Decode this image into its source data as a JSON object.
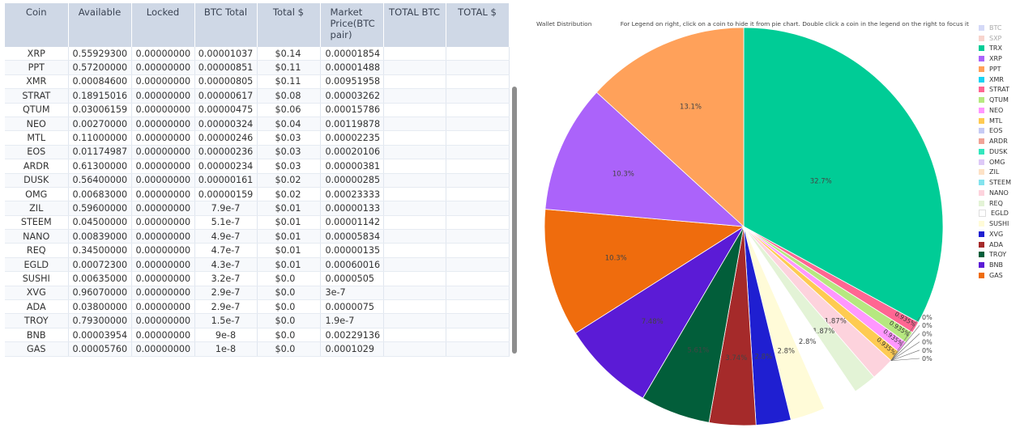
{
  "table": {
    "headers": [
      "Coin",
      "Available",
      "Locked",
      "BTC Total",
      "Total $",
      "Market Price(BTC pair)",
      "TOTAL BTC",
      "TOTAL $"
    ],
    "rows": [
      [
        "XRP",
        "0.55929300",
        "0.00000000",
        "0.00001037",
        "$0.14",
        "0.00001854"
      ],
      [
        "PPT",
        "0.57200000",
        "0.00000000",
        "0.00000851",
        "$0.11",
        "0.00001488"
      ],
      [
        "XMR",
        "0.00084600",
        "0.00000000",
        "0.00000805",
        "$0.11",
        "0.00951958"
      ],
      [
        "STRAT",
        "0.18915016",
        "0.00000000",
        "0.00000617",
        "$0.08",
        "0.00003262"
      ],
      [
        "QTUM",
        "0.03006159",
        "0.00000000",
        "0.00000475",
        "$0.06",
        "0.00015786"
      ],
      [
        "NEO",
        "0.00270000",
        "0.00000000",
        "0.00000324",
        "$0.04",
        "0.00119878"
      ],
      [
        "MTL",
        "0.11000000",
        "0.00000000",
        "0.00000246",
        "$0.03",
        "0.00002235"
      ],
      [
        "EOS",
        "0.01174987",
        "0.00000000",
        "0.00000236",
        "$0.03",
        "0.00020106"
      ],
      [
        "ARDR",
        "0.61300000",
        "0.00000000",
        "0.00000234",
        "$0.03",
        "0.00000381"
      ],
      [
        "DUSK",
        "0.56400000",
        "0.00000000",
        "0.00000161",
        "$0.02",
        "0.00000285"
      ],
      [
        "OMG",
        "0.00683000",
        "0.00000000",
        "0.00000159",
        "$0.02",
        "0.00023333"
      ],
      [
        "ZIL",
        "0.59600000",
        "0.00000000",
        "7.9e-7",
        "$0.01",
        "0.00000133"
      ],
      [
        "STEEM",
        "0.04500000",
        "0.00000000",
        "5.1e-7",
        "$0.01",
        "0.00001142"
      ],
      [
        "NANO",
        "0.00839000",
        "0.00000000",
        "4.9e-7",
        "$0.01",
        "0.00005834"
      ],
      [
        "REQ",
        "0.34500000",
        "0.00000000",
        "4.7e-7",
        "$0.01",
        "0.00000135"
      ],
      [
        "EGLD",
        "0.00072300",
        "0.00000000",
        "4.3e-7",
        "$0.01",
        "0.00060016"
      ],
      [
        "SUSHI",
        "0.00635000",
        "0.00000000",
        "3.2e-7",
        "$0.0",
        "0.0000505"
      ],
      [
        "XVG",
        "0.96070000",
        "0.00000000",
        "2.9e-7",
        "$0.0",
        "3e-7"
      ],
      [
        "ADA",
        "0.03800000",
        "0.00000000",
        "2.9e-7",
        "$0.0",
        "0.0000075"
      ],
      [
        "TROY",
        "0.79300000",
        "0.00000000",
        "1.5e-7",
        "$0.0",
        "1.9e-7"
      ],
      [
        "BNB",
        "0.00003954",
        "0.00000000",
        "9e-8",
        "$0.0",
        "0.00229136"
      ],
      [
        "GAS",
        "0.00005760",
        "0.00000000",
        "1e-8",
        "$0.0",
        "0.0001029"
      ]
    ]
  },
  "chart_header": {
    "title": "Wallet Distribution",
    "hint": "For Legend on right, click on a coin to hide it from pie chart. Double click a coin in the legend on the right to focus it"
  },
  "chart_data": {
    "type": "pie",
    "title": "Wallet Distribution",
    "legend_position": "right",
    "slices": [
      {
        "label": "TRX",
        "value": 32.7,
        "text": "32.7%",
        "color": "#00cc96"
      },
      {
        "label": "STRAT",
        "value": 0.935,
        "text": "0.935%",
        "color": "#ff6692"
      },
      {
        "label": "QTUM",
        "value": 0.935,
        "text": "0.935%",
        "color": "#b6e880"
      },
      {
        "label": "NEO",
        "value": 0.935,
        "text": "0.935%",
        "color": "#ff97ff"
      },
      {
        "label": "MTL",
        "value": 0.935,
        "text": "0.935%",
        "color": "#fecb52"
      },
      {
        "label": "EOS",
        "value": 0.0,
        "text": "0%",
        "color": "#c6cbf4"
      },
      {
        "label": "ARDR",
        "value": 0.0,
        "text": "0%",
        "color": "#f0a396"
      },
      {
        "label": "DUSK",
        "value": 0.0,
        "text": "0%",
        "color": "#33e6bd"
      },
      {
        "label": "OMG",
        "value": 0.0,
        "text": "0%",
        "color": "#ddc9f7"
      },
      {
        "label": "ZIL",
        "value": 0.0,
        "text": "0%",
        "color": "#fde2c6"
      },
      {
        "label": "STEEM",
        "value": 0.0,
        "text": "0%",
        "color": "#83e3ee"
      },
      {
        "label": "NANO",
        "value": 1.87,
        "text": "1.87%",
        "color": "#fdd3dd"
      },
      {
        "label": "REQ",
        "value": 1.87,
        "text": "1.87%",
        "color": "#e3f3d6"
      },
      {
        "label": "EGLD",
        "value": 2.8,
        "text": "2.8%",
        "color": "#ffffff"
      },
      {
        "label": "SUSHI",
        "value": 2.8,
        "text": "2.8%",
        "color": "#fffbd8"
      },
      {
        "label": "XVG",
        "value": 2.8,
        "text": "2.8%",
        "color": "#1f1fd1"
      },
      {
        "label": "ADA",
        "value": 3.74,
        "text": "3.74%",
        "color": "#a52a2a"
      },
      {
        "label": "TROY",
        "value": 5.61,
        "text": "5.61%",
        "color": "#025e3a"
      },
      {
        "label": "BNB",
        "value": 7.48,
        "text": "7.48%",
        "color": "#5b1bd6"
      },
      {
        "label": "GAS",
        "value": 10.3,
        "text": "10.3%",
        "color": "#ef6c0d"
      },
      {
        "label": "XRP",
        "value": 10.3,
        "text": "10.3%",
        "color": "#ab63fa"
      },
      {
        "label": "PPT",
        "value": 13.1,
        "text": "13.1%",
        "color": "#ffa15a"
      }
    ]
  },
  "legend": {
    "items": [
      {
        "label": "BTC",
        "color": "#a9b4f0",
        "hidden": true
      },
      {
        "label": "SXP",
        "color": "#f2a99c",
        "hidden": true
      },
      {
        "label": "TRX",
        "color": "#00cc96",
        "hidden": false
      },
      {
        "label": "XRP",
        "color": "#ab63fa",
        "hidden": false
      },
      {
        "label": "PPT",
        "color": "#ffa15a",
        "hidden": false
      },
      {
        "label": "XMR",
        "color": "#19d3f3",
        "hidden": false
      },
      {
        "label": "STRAT",
        "color": "#ff6692",
        "hidden": false
      },
      {
        "label": "QTUM",
        "color": "#b6e880",
        "hidden": false
      },
      {
        "label": "NEO",
        "color": "#ff97ff",
        "hidden": false
      },
      {
        "label": "MTL",
        "color": "#fecb52",
        "hidden": false
      },
      {
        "label": "EOS",
        "color": "#c6cbf4",
        "hidden": false
      },
      {
        "label": "ARDR",
        "color": "#f0a396",
        "hidden": false
      },
      {
        "label": "DUSK",
        "color": "#33e6bd",
        "hidden": false
      },
      {
        "label": "OMG",
        "color": "#ddc9f7",
        "hidden": false
      },
      {
        "label": "ZIL",
        "color": "#fde2c6",
        "hidden": false
      },
      {
        "label": "STEEM",
        "color": "#83e3ee",
        "hidden": false
      },
      {
        "label": "NANO",
        "color": "#fdd3dd",
        "hidden": false
      },
      {
        "label": "REQ",
        "color": "#e3f3d6",
        "hidden": false
      },
      {
        "label": "EGLD",
        "color": "#ffffff",
        "hidden": false
      },
      {
        "label": "SUSHI",
        "color": "#fffbd8",
        "hidden": false
      },
      {
        "label": "XVG",
        "color": "#1f1fd1",
        "hidden": false
      },
      {
        "label": "ADA",
        "color": "#a52a2a",
        "hidden": false
      },
      {
        "label": "TROY",
        "color": "#025e3a",
        "hidden": false
      },
      {
        "label": "BNB",
        "color": "#5b1bd6",
        "hidden": false
      },
      {
        "label": "GAS",
        "color": "#ef6c0d",
        "hidden": false
      }
    ]
  }
}
